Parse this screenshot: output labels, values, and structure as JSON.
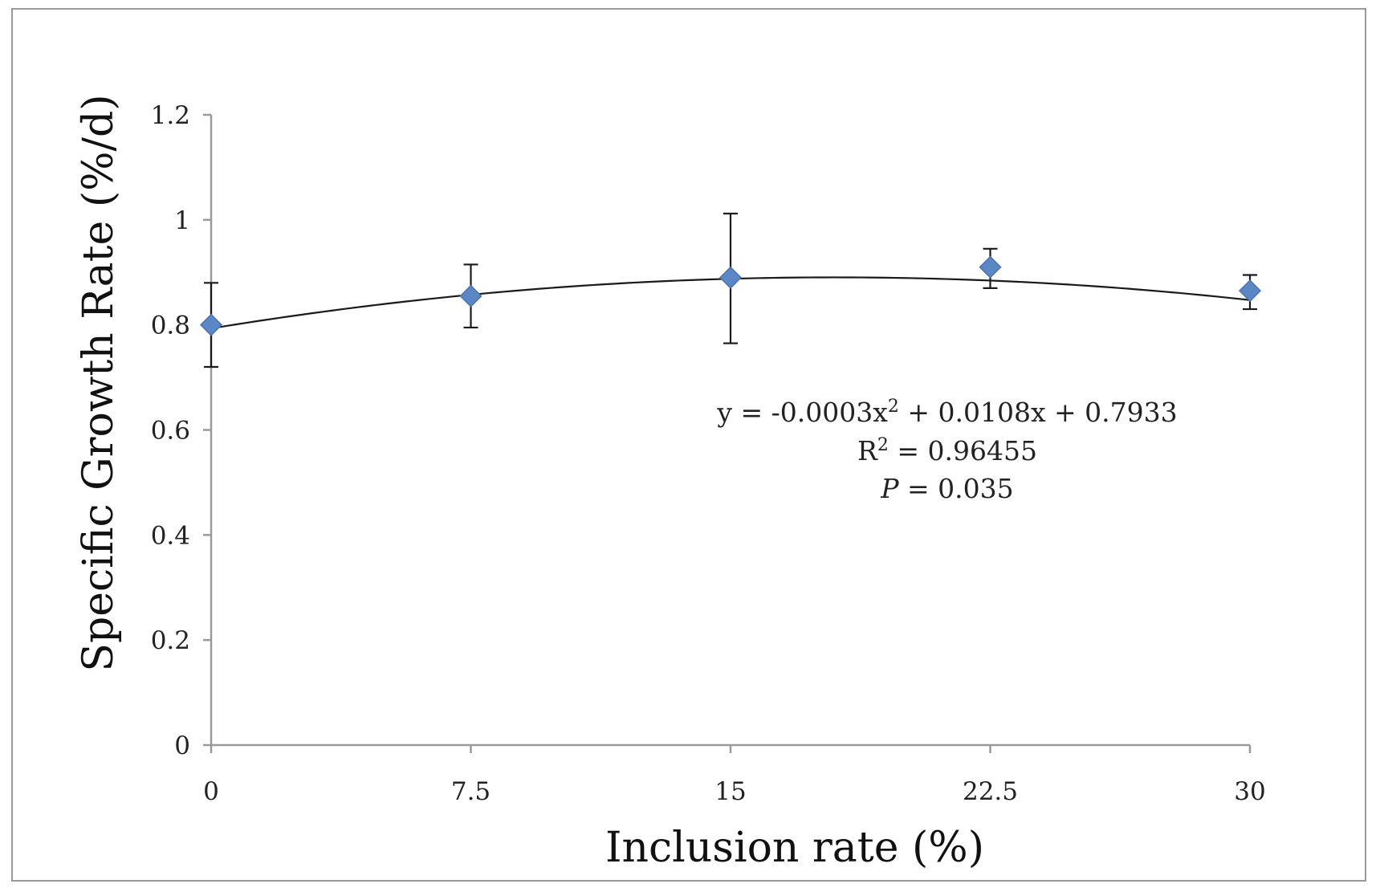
{
  "chart_data": {
    "type": "scatter",
    "xlabel": "Inclusion rate (%)",
    "ylabel": "Specific Growth Rate (%/d)",
    "x_ticks": [
      "0",
      "7.5",
      "15",
      "22.5",
      "30"
    ],
    "y_ticks": [
      "0",
      "0.2",
      "0.4",
      "0.6",
      "0.8",
      "1",
      "1.2"
    ],
    "xlim": [
      0,
      30
    ],
    "ylim": [
      0,
      1.2
    ],
    "grid": false,
    "points": [
      {
        "x": 0,
        "y": 0.8,
        "err_low": 0.72,
        "err_high": 0.88
      },
      {
        "x": 7.5,
        "y": 0.855,
        "err_low": 0.795,
        "err_high": 0.915
      },
      {
        "x": 15,
        "y": 0.89,
        "err_low": 0.765,
        "err_high": 1.012
      },
      {
        "x": 22.5,
        "y": 0.91,
        "err_low": 0.87,
        "err_high": 0.945
      },
      {
        "x": 30,
        "y": 0.865,
        "err_low": 0.83,
        "err_high": 0.895
      }
    ],
    "trendline": {
      "type": "polynomial",
      "a": -0.0003,
      "b": 0.0108,
      "c": 0.7933
    },
    "annotation": {
      "equation_prefix": "y = -0.0003x",
      "equation_sup": "2",
      "equation_suffix": " + 0.0108x + 0.7933",
      "r2_prefix": "R",
      "r2_sup": "2",
      "r2_suffix": " = 0.96455",
      "p_label": "P",
      "p_suffix": " = 0.035"
    },
    "colors": {
      "marker": "#5b87c5",
      "marker_edge": "#4a74b0",
      "trend": "#1a1a1a",
      "error_bar": "#1a1a1a",
      "axis": "#9a9a9a"
    }
  }
}
